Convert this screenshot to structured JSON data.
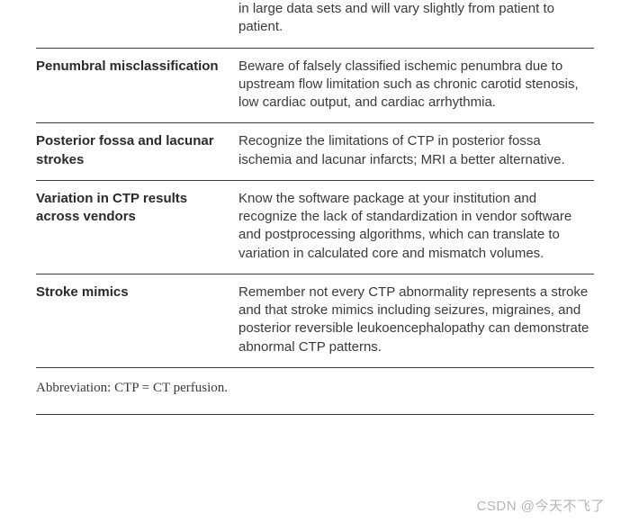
{
  "rows": [
    {
      "term": "",
      "desc": "in large data sets and will vary slightly from patient to patient."
    },
    {
      "term": "Penumbral misclassification",
      "desc": "Beware of falsely classified ischemic penumbra due to upstream flow limitation such as chronic carotid stenosis, low cardiac output, and cardiac arrhythmia."
    },
    {
      "term": "Posterior fossa and lacunar strokes",
      "desc": "Recognize the limitations of CTP in posterior fossa ischemia and lacunar infarcts; MRI a better alternative."
    },
    {
      "term": "Variation in CTP results across vendors",
      "desc": "Know the software package at your institution and recognize the lack of standardization in vendor software and postprocessing algorithms, which can translate to variation in calculated core and mismatch volumes."
    },
    {
      "term": "Stroke mimics",
      "desc": "Remember not every CTP abnormality represents a stroke and that stroke mimics including seizures, migraines, and posterior reversible leukoencephalopathy can demonstrate abnormal CTP patterns."
    }
  ],
  "footnote": "Abbreviation: CTP = CT perfusion.",
  "watermark": "CSDN @今天不飞了"
}
